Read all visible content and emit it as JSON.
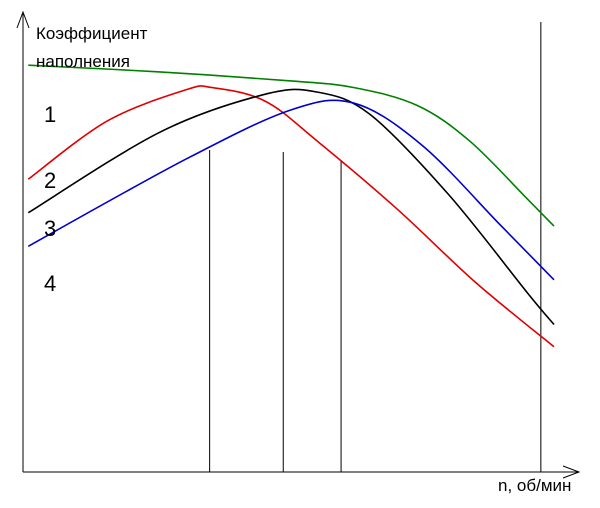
{
  "chart_data": {
    "type": "line",
    "ylabel_line1": "Коэффициент",
    "ylabel_line2": "наполнения",
    "xlabel": "n, об/мин",
    "grid": false,
    "legend": "inline labels on the left",
    "series": [
      {
        "name": "1",
        "color": "#008000",
        "points": [
          [
            0,
            0.91
          ],
          [
            25,
            0.895
          ],
          [
            50,
            0.875
          ],
          [
            62,
            0.86
          ],
          [
            74,
            0.82
          ],
          [
            84,
            0.74
          ],
          [
            95,
            0.61
          ],
          [
            100,
            0.55
          ]
        ]
      },
      {
        "name": "2",
        "color": "#e00000",
        "points": [
          [
            0,
            0.655
          ],
          [
            15,
            0.785
          ],
          [
            30,
            0.855
          ],
          [
            35,
            0.86
          ],
          [
            45,
            0.83
          ],
          [
            55,
            0.74
          ],
          [
            70,
            0.59
          ],
          [
            85,
            0.425
          ],
          [
            100,
            0.28
          ]
        ]
      },
      {
        "name": "3",
        "color": "#000000",
        "points": [
          [
            0,
            0.58
          ],
          [
            25,
            0.76
          ],
          [
            45,
            0.845
          ],
          [
            55,
            0.85
          ],
          [
            65,
            0.8
          ],
          [
            80,
            0.62
          ],
          [
            95,
            0.4
          ],
          [
            100,
            0.33
          ]
        ]
      },
      {
        "name": "4",
        "color": "#0000cc",
        "points": [
          [
            0,
            0.505
          ],
          [
            30,
            0.7
          ],
          [
            50,
            0.81
          ],
          [
            62,
            0.825
          ],
          [
            75,
            0.73
          ],
          [
            90,
            0.55
          ],
          [
            100,
            0.43
          ]
        ]
      }
    ],
    "vertical_lines": [
      34.5,
      48.5,
      59.5,
      97.5
    ],
    "xlim": [
      -1,
      100
    ],
    "ylim": [
      0,
      1.0
    ]
  }
}
